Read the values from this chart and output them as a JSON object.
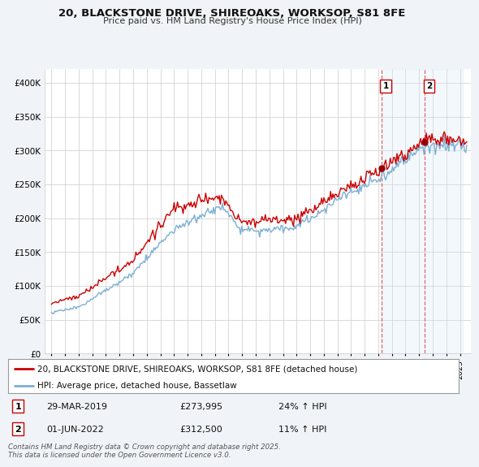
{
  "title": "20, BLACKSTONE DRIVE, SHIREOAKS, WORKSOP, S81 8FE",
  "subtitle": "Price paid vs. HM Land Registry's House Price Index (HPI)",
  "ylim": [
    0,
    420000
  ],
  "yticks": [
    0,
    50000,
    100000,
    150000,
    200000,
    250000,
    300000,
    350000,
    400000
  ],
  "ytick_labels": [
    "£0",
    "£50K",
    "£100K",
    "£150K",
    "£200K",
    "£250K",
    "£300K",
    "£350K",
    "£400K"
  ],
  "line1_color": "#cc0000",
  "line2_color": "#7bafd4",
  "dot_color": "#990000",
  "annotation1_date": "29-MAR-2019",
  "annotation1_price": "£273,995",
  "annotation1_hpi": "24% ↑ HPI",
  "annotation2_date": "01-JUN-2022",
  "annotation2_price": "£312,500",
  "annotation2_hpi": "11% ↑ HPI",
  "legend_line1": "20, BLACKSTONE DRIVE, SHIREOAKS, WORKSOP, S81 8FE (detached house)",
  "legend_line2": "HPI: Average price, detached house, Bassetlaw",
  "footer": "Contains HM Land Registry data © Crown copyright and database right 2025.\nThis data is licensed under the Open Government Licence v3.0.",
  "bg_color": "#f0f4f8",
  "plot_bg": "#ffffff",
  "grid_color": "#cccccc",
  "shade_color": "#d0e4f5",
  "ann1_x": 2019.24,
  "ann1_y": 273995,
  "ann2_x": 2022.42,
  "ann2_y": 312500,
  "xmin": 1994.5,
  "xmax": 2025.8
}
